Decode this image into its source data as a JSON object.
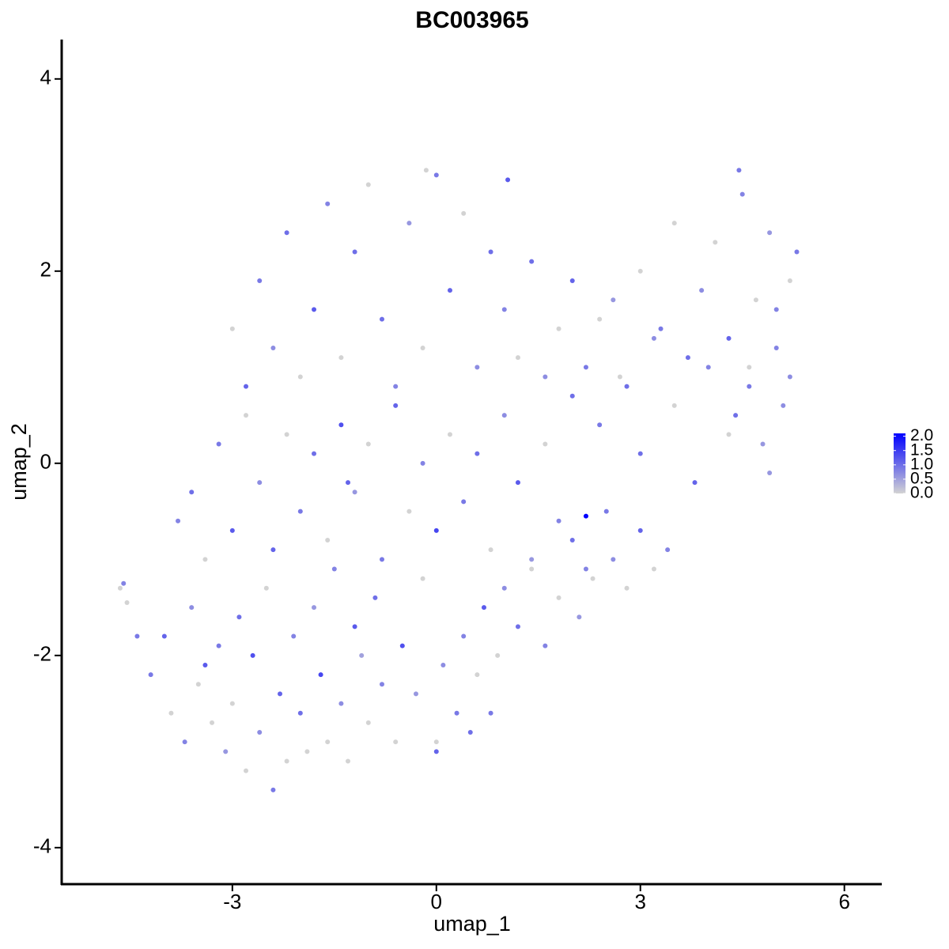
{
  "chart_data": {
    "type": "scatter",
    "title": "BC003965",
    "x_label": "umap_1",
    "y_label": "umap_2",
    "xlim": [
      -5.51,
      6.55
    ],
    "ylim": [
      -4.38,
      4.41
    ],
    "xticks": [
      -3,
      0,
      3,
      6
    ],
    "yticks": [
      -4,
      -2,
      0,
      2,
      4
    ],
    "color_low": "#d3d3d3",
    "color_high": "#0000ff",
    "clim": [
      0,
      2.1
    ],
    "colorbar_ticks": [
      {
        "value": 0,
        "label": "0.0"
      },
      {
        "value": 0.5,
        "label": "0.5"
      },
      {
        "value": 1,
        "label": "1.0"
      },
      {
        "value": 1.5,
        "label": "1.5"
      },
      {
        "value": 2,
        "label": "2.0"
      }
    ],
    "x": [
      -4.2,
      -4.0,
      -3.9,
      -3.7,
      -3.6,
      -3.5,
      -3.4,
      -3.3,
      -3.2,
      -3.1,
      -3.0,
      -2.9,
      -2.8,
      -2.7,
      -2.6,
      -2.5,
      -2.4,
      -2.3,
      -2.2,
      -2.1,
      -2.0,
      -1.9,
      -1.8,
      -1.7,
      -1.6,
      -1.5,
      -1.4,
      -1.3,
      -1.2,
      -1.1,
      -1.0,
      -0.9,
      -0.8,
      -0.6,
      -0.5,
      -0.3,
      -0.2,
      0.0,
      0.1,
      0.3,
      0.4,
      0.5,
      0.6,
      0.7,
      0.8,
      0.9,
      1.0,
      1.2,
      1.4,
      1.6,
      1.8,
      2.0,
      2.1,
      2.3,
      2.5,
      2.6,
      2.8,
      3.0,
      3.2,
      3.4,
      -3.8,
      -3.6,
      -3.4,
      -3.2,
      -3.0,
      -2.8,
      -2.6,
      -2.4,
      -2.2,
      -2.0,
      -1.8,
      -1.6,
      -1.4,
      -1.2,
      -1.0,
      -0.8,
      -0.6,
      -0.4,
      -0.2,
      0.0,
      0.2,
      0.4,
      0.6,
      0.8,
      1.0,
      1.2,
      1.4,
      1.6,
      1.8,
      2.0,
      2.4,
      2.7,
      3.0,
      3.2,
      3.5,
      3.8,
      4.0,
      4.3,
      4.6,
      4.9,
      -3.0,
      -2.8,
      -2.6,
      -2.4,
      -2.2,
      -2.0,
      -1.8,
      -1.6,
      -1.4,
      -1.2,
      -1.0,
      -0.8,
      -0.6,
      -0.4,
      -0.2,
      0.0,
      0.2,
      0.4,
      0.6,
      0.8,
      1.0,
      1.2,
      1.4,
      1.6,
      1.8,
      2.0,
      2.2,
      2.4,
      2.6,
      2.8,
      3.0,
      3.3,
      3.5,
      3.7,
      3.9,
      4.1,
      4.3,
      4.5,
      4.7,
      4.9,
      5.0,
      5.1,
      5.2,
      5.3,
      4.4,
      4.6,
      4.8,
      5.0,
      5.2,
      4.45,
      -4.6,
      -4.65,
      -4.55,
      -4.4,
      -1.3,
      0.0,
      -0.15,
      1.05,
      2.2,
      2.2
    ],
    "y": [
      -2.2,
      -1.8,
      -2.6,
      -2.9,
      -1.5,
      -2.3,
      -2.1,
      -2.7,
      -1.9,
      -3.0,
      -2.5,
      -1.6,
      -3.2,
      -2.0,
      -2.8,
      -1.3,
      -3.4,
      -2.4,
      -3.1,
      -1.8,
      -2.6,
      -3.0,
      -1.5,
      -2.2,
      -2.9,
      -1.1,
      -2.5,
      -3.1,
      -1.7,
      -2.0,
      -2.7,
      -1.4,
      -2.3,
      -2.9,
      -1.9,
      -2.4,
      -1.2,
      -3.0,
      -2.1,
      -2.6,
      -1.8,
      -2.8,
      -2.2,
      -1.5,
      -2.6,
      -2.0,
      -1.3,
      -1.7,
      -1.1,
      -1.9,
      -1.4,
      -0.8,
      -1.6,
      -1.2,
      -0.5,
      -1.0,
      -1.3,
      -0.7,
      -1.1,
      -0.9,
      -0.6,
      -0.3,
      -1.0,
      0.2,
      -0.7,
      0.5,
      -0.2,
      -0.9,
      0.3,
      -0.5,
      0.1,
      -0.8,
      0.4,
      -0.3,
      0.2,
      -1.0,
      0.6,
      -0.5,
      0.0,
      -0.7,
      0.3,
      -0.4,
      0.1,
      -0.9,
      0.5,
      -0.2,
      -1.0,
      0.2,
      -0.6,
      0.7,
      0.4,
      0.9,
      0.1,
      1.3,
      0.6,
      -0.2,
      1.0,
      0.3,
      0.8,
      -0.1,
      1.4,
      0.8,
      1.9,
      1.2,
      2.4,
      0.9,
      1.6,
      2.7,
      1.1,
      2.2,
      2.9,
      1.5,
      0.8,
      2.5,
      1.2,
      3.0,
      1.8,
      2.6,
      1.0,
      2.2,
      1.6,
      1.1,
      2.1,
      0.9,
      1.4,
      1.9,
      1.0,
      1.5,
      1.7,
      0.8,
      2.0,
      1.4,
      2.5,
      1.1,
      1.8,
      2.3,
      1.3,
      2.8,
      1.7,
      2.4,
      1.2,
      0.6,
      1.9,
      2.2,
      0.5,
      1.0,
      0.2,
      1.6,
      0.9,
      3.05,
      -1.25,
      -1.3,
      -1.45,
      -1.8,
      -0.2,
      -2.9,
      3.05,
      2.95,
      -0.55,
      -1.1
    ],
    "values": [
      0.9,
      1.1,
      0,
      0.8,
      0.7,
      0,
      1.2,
      0,
      0.9,
      0.6,
      0,
      1.0,
      0,
      1.3,
      0.7,
      0,
      0.9,
      1.1,
      0,
      0.8,
      1.0,
      0,
      0.6,
      1.4,
      0,
      0.8,
      0.7,
      0,
      1.2,
      0.5,
      0,
      1.0,
      0.8,
      0,
      1.3,
      0.6,
      0,
      1.1,
      0.7,
      0.9,
      0.8,
      1.0,
      0,
      1.2,
      0.9,
      0,
      0.7,
      1.0,
      0,
      0.8,
      0,
      1.0,
      0.6,
      0,
      0.9,
      0.7,
      0,
      1.1,
      0,
      0.8,
      0.8,
      1.0,
      0,
      0.9,
      1.2,
      0,
      0.7,
      1.1,
      0,
      0.9,
      1.0,
      0,
      1.3,
      0.6,
      0,
      0.9,
      1.1,
      0,
      0.8,
      1.4,
      0,
      0.9,
      1.0,
      0,
      0.7,
      1.2,
      0.6,
      0,
      0.8,
      1.0,
      0.9,
      0,
      1.0,
      0.7,
      0,
      1.1,
      0.8,
      0,
      0.9,
      0.6,
      0,
      1.1,
      0.9,
      0.7,
      1.0,
      0,
      1.2,
      0.8,
      0,
      1.0,
      0,
      1.0,
      0.8,
      0.6,
      0,
      0.9,
      1.1,
      0,
      0.7,
      1.0,
      0.8,
      0,
      1.0,
      0.7,
      0,
      1.1,
      0.9,
      0,
      0.6,
      1.0,
      0,
      0.9,
      0,
      1.0,
      0.7,
      0,
      1.1,
      0.8,
      0,
      0.6,
      0.8,
      0.7,
      0,
      0.9,
      1.0,
      0,
      0.6,
      0.8,
      0.7,
      0.9,
      0.8,
      0,
      0,
      0.9,
      1.1,
      0,
      0,
      1.2,
      2.1,
      0.8
    ]
  }
}
